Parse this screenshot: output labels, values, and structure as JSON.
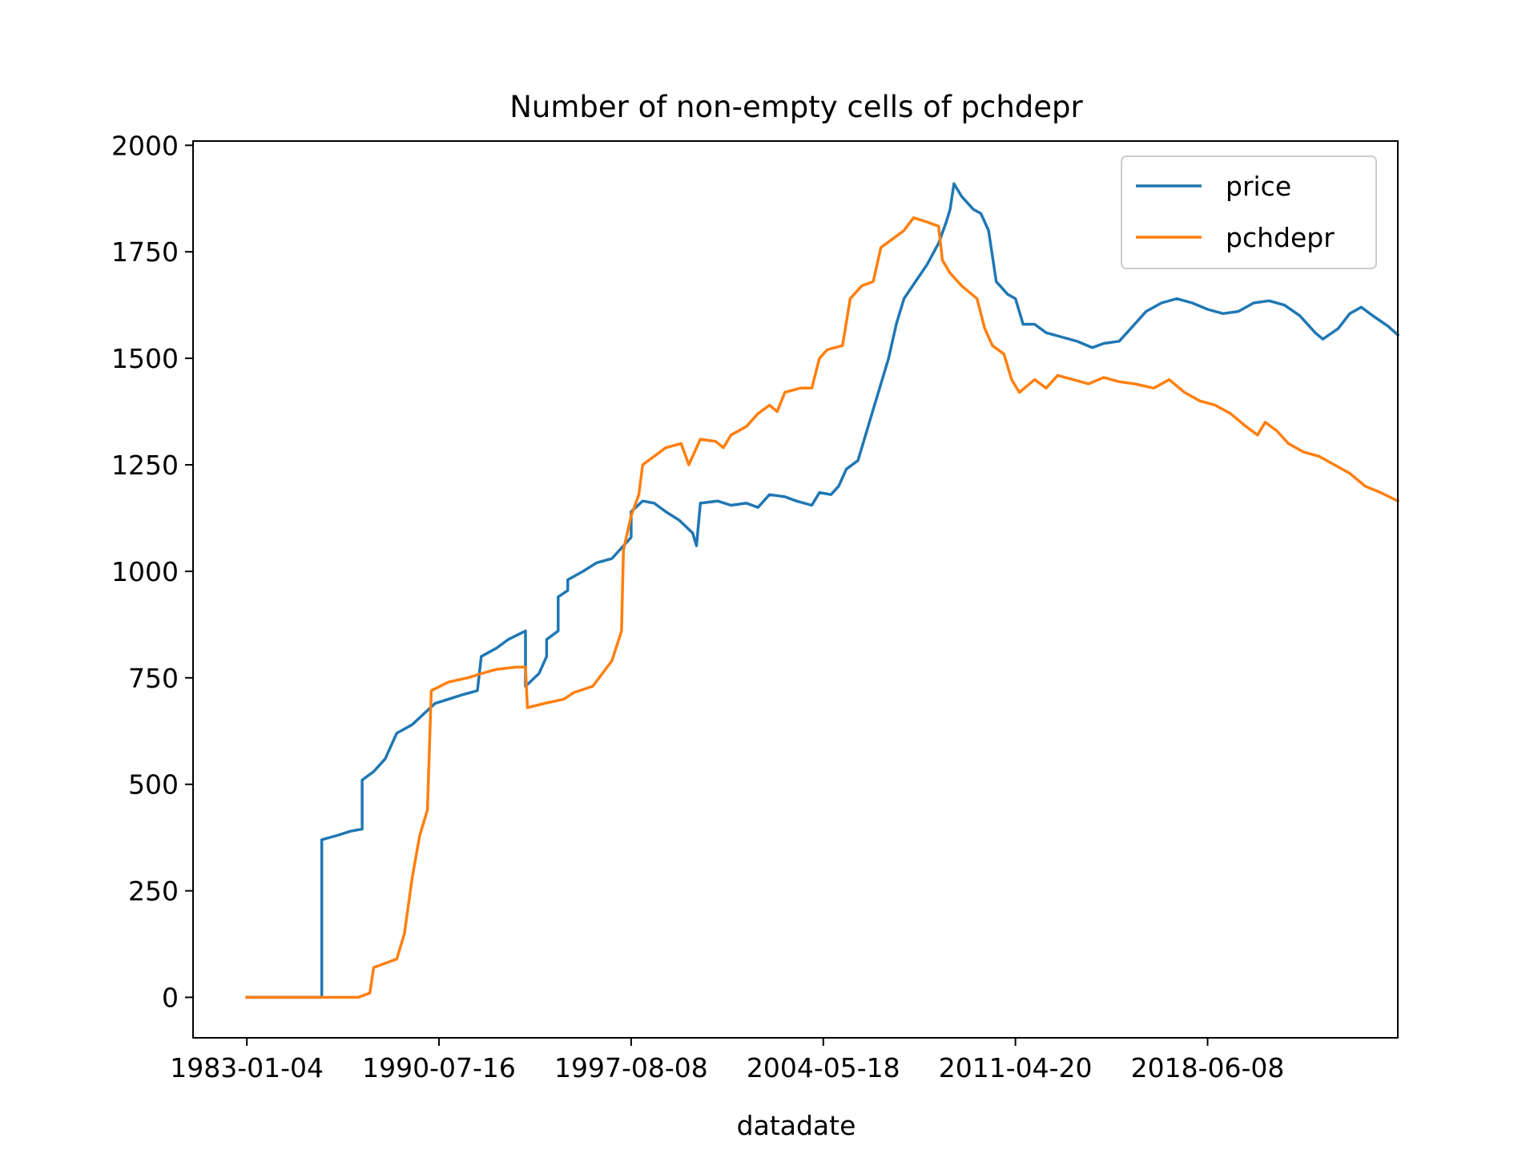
{
  "chart_data": {
    "type": "line",
    "title": "Number of non-empty cells of pchdepr",
    "xlabel": "datadate",
    "ylabel": "",
    "x_tick_labels": [
      "1983-01-04",
      "1990-07-16",
      "1997-08-08",
      "2004-05-18",
      "2011-04-20",
      "2018-06-08"
    ],
    "y_tick_labels": [
      "0",
      "250",
      "500",
      "750",
      "1000",
      "1250",
      "1500",
      "1750",
      "2000"
    ],
    "x_tick_values": [
      0,
      1,
      2,
      3,
      4,
      5
    ],
    "y_tick_values": [
      0,
      250,
      500,
      750,
      1000,
      1250,
      1500,
      1750,
      2000
    ],
    "xlim": [
      -0.28,
      5.99
    ],
    "ylim": [
      -95,
      2010
    ],
    "grid": false,
    "legend": "top-right",
    "series": [
      {
        "name": "price",
        "color": "#1f77b4",
        "points": [
          [
            0.0,
            0
          ],
          [
            0.39,
            0
          ],
          [
            0.39,
            370
          ],
          [
            0.47,
            380
          ],
          [
            0.54,
            390
          ],
          [
            0.6,
            395
          ],
          [
            0.6,
            510
          ],
          [
            0.66,
            530
          ],
          [
            0.72,
            560
          ],
          [
            0.78,
            620
          ],
          [
            0.86,
            640
          ],
          [
            0.92,
            665
          ],
          [
            0.98,
            690
          ],
          [
            1.05,
            700
          ],
          [
            1.12,
            710
          ],
          [
            1.2,
            720
          ],
          [
            1.22,
            800
          ],
          [
            1.3,
            820
          ],
          [
            1.36,
            840
          ],
          [
            1.45,
            860
          ],
          [
            1.45,
            730
          ],
          [
            1.52,
            760
          ],
          [
            1.56,
            800
          ],
          [
            1.56,
            840
          ],
          [
            1.62,
            860
          ],
          [
            1.62,
            940
          ],
          [
            1.67,
            955
          ],
          [
            1.67,
            980
          ],
          [
            1.75,
            1000
          ],
          [
            1.82,
            1020
          ],
          [
            1.9,
            1030
          ],
          [
            1.97,
            1065
          ],
          [
            2.0,
            1080
          ],
          [
            2.0,
            1140
          ],
          [
            2.06,
            1165
          ],
          [
            2.12,
            1160
          ],
          [
            2.18,
            1140
          ],
          [
            2.25,
            1120
          ],
          [
            2.32,
            1090
          ],
          [
            2.34,
            1060
          ],
          [
            2.36,
            1160
          ],
          [
            2.45,
            1165
          ],
          [
            2.52,
            1155
          ],
          [
            2.6,
            1160
          ],
          [
            2.66,
            1150
          ],
          [
            2.72,
            1180
          ],
          [
            2.8,
            1175
          ],
          [
            2.86,
            1165
          ],
          [
            2.94,
            1155
          ],
          [
            2.98,
            1185
          ],
          [
            3.04,
            1180
          ],
          [
            3.08,
            1200
          ],
          [
            3.12,
            1240
          ],
          [
            3.18,
            1260
          ],
          [
            3.22,
            1320
          ],
          [
            3.26,
            1380
          ],
          [
            3.3,
            1440
          ],
          [
            3.34,
            1500
          ],
          [
            3.38,
            1580
          ],
          [
            3.42,
            1640
          ],
          [
            3.48,
            1680
          ],
          [
            3.54,
            1720
          ],
          [
            3.6,
            1770
          ],
          [
            3.64,
            1820
          ],
          [
            3.66,
            1850
          ],
          [
            3.68,
            1910
          ],
          [
            3.72,
            1880
          ],
          [
            3.78,
            1850
          ],
          [
            3.82,
            1840
          ],
          [
            3.86,
            1800
          ],
          [
            3.9,
            1680
          ],
          [
            3.96,
            1650
          ],
          [
            4.0,
            1640
          ],
          [
            4.04,
            1580
          ],
          [
            4.1,
            1580
          ],
          [
            4.16,
            1560
          ],
          [
            4.24,
            1550
          ],
          [
            4.32,
            1540
          ],
          [
            4.4,
            1525
          ],
          [
            4.46,
            1535
          ],
          [
            4.54,
            1540
          ],
          [
            4.6,
            1570
          ],
          [
            4.68,
            1610
          ],
          [
            4.76,
            1630
          ],
          [
            4.84,
            1640
          ],
          [
            4.92,
            1630
          ],
          [
            5.0,
            1615
          ],
          [
            5.08,
            1605
          ],
          [
            5.16,
            1610
          ],
          [
            5.24,
            1630
          ],
          [
            5.32,
            1635
          ],
          [
            5.4,
            1625
          ],
          [
            5.48,
            1600
          ],
          [
            5.56,
            1560
          ],
          [
            5.6,
            1545
          ],
          [
            5.68,
            1570
          ],
          [
            5.74,
            1605
          ],
          [
            5.8,
            1620
          ],
          [
            5.86,
            1600
          ],
          [
            5.94,
            1575
          ],
          [
            5.99,
            1555
          ]
        ]
      },
      {
        "name": "pchdepr",
        "color": "#ff7f0e",
        "points": [
          [
            0.0,
            0
          ],
          [
            0.58,
            0
          ],
          [
            0.64,
            10
          ],
          [
            0.66,
            70
          ],
          [
            0.72,
            80
          ],
          [
            0.78,
            90
          ],
          [
            0.82,
            150
          ],
          [
            0.86,
            280
          ],
          [
            0.9,
            380
          ],
          [
            0.94,
            440
          ],
          [
            0.96,
            720
          ],
          [
            1.05,
            740
          ],
          [
            1.15,
            750
          ],
          [
            1.22,
            760
          ],
          [
            1.3,
            770
          ],
          [
            1.4,
            775
          ],
          [
            1.45,
            775
          ],
          [
            1.46,
            680
          ],
          [
            1.55,
            690
          ],
          [
            1.65,
            700
          ],
          [
            1.7,
            715
          ],
          [
            1.8,
            730
          ],
          [
            1.85,
            760
          ],
          [
            1.9,
            790
          ],
          [
            1.95,
            860
          ],
          [
            1.96,
            1050
          ],
          [
            2.0,
            1130
          ],
          [
            2.04,
            1180
          ],
          [
            2.06,
            1250
          ],
          [
            2.12,
            1270
          ],
          [
            2.18,
            1290
          ],
          [
            2.26,
            1300
          ],
          [
            2.3,
            1250
          ],
          [
            2.36,
            1310
          ],
          [
            2.44,
            1305
          ],
          [
            2.48,
            1290
          ],
          [
            2.52,
            1320
          ],
          [
            2.6,
            1340
          ],
          [
            2.66,
            1370
          ],
          [
            2.72,
            1390
          ],
          [
            2.76,
            1375
          ],
          [
            2.8,
            1420
          ],
          [
            2.88,
            1430
          ],
          [
            2.94,
            1430
          ],
          [
            2.98,
            1500
          ],
          [
            3.02,
            1520
          ],
          [
            3.1,
            1530
          ],
          [
            3.14,
            1640
          ],
          [
            3.2,
            1670
          ],
          [
            3.26,
            1680
          ],
          [
            3.3,
            1760
          ],
          [
            3.36,
            1780
          ],
          [
            3.42,
            1800
          ],
          [
            3.47,
            1830
          ],
          [
            3.54,
            1820
          ],
          [
            3.6,
            1810
          ],
          [
            3.62,
            1730
          ],
          [
            3.66,
            1700
          ],
          [
            3.72,
            1670
          ],
          [
            3.8,
            1640
          ],
          [
            3.84,
            1570
          ],
          [
            3.88,
            1530
          ],
          [
            3.94,
            1510
          ],
          [
            3.98,
            1450
          ],
          [
            4.02,
            1420
          ],
          [
            4.1,
            1450
          ],
          [
            4.16,
            1430
          ],
          [
            4.22,
            1460
          ],
          [
            4.3,
            1450
          ],
          [
            4.38,
            1440
          ],
          [
            4.46,
            1455
          ],
          [
            4.54,
            1445
          ],
          [
            4.62,
            1440
          ],
          [
            4.72,
            1430
          ],
          [
            4.8,
            1450
          ],
          [
            4.88,
            1420
          ],
          [
            4.96,
            1400
          ],
          [
            5.04,
            1390
          ],
          [
            5.12,
            1370
          ],
          [
            5.2,
            1340
          ],
          [
            5.26,
            1320
          ],
          [
            5.3,
            1350
          ],
          [
            5.36,
            1330
          ],
          [
            5.42,
            1300
          ],
          [
            5.5,
            1280
          ],
          [
            5.58,
            1270
          ],
          [
            5.66,
            1250
          ],
          [
            5.74,
            1230
          ],
          [
            5.82,
            1200
          ],
          [
            5.9,
            1185
          ],
          [
            5.99,
            1165
          ]
        ]
      }
    ]
  }
}
